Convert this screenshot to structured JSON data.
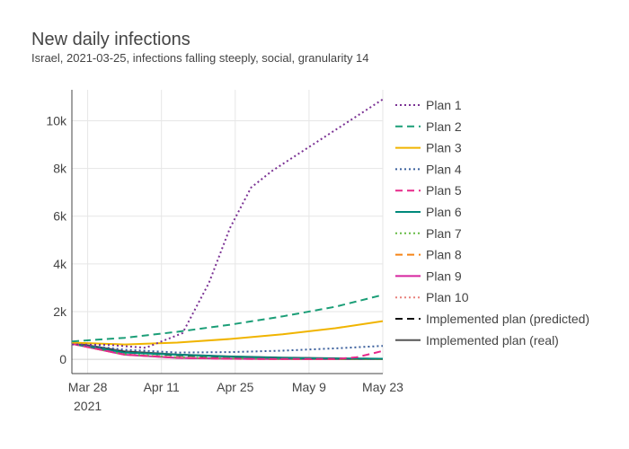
{
  "chart_data": {
    "type": "line",
    "title": "New daily infections",
    "subtitle": "Israel, 2021-03-25, infections falling steeply, social, granularity 14",
    "x_ticks": [
      {
        "date": "2021-03-28",
        "label": "Mar 28",
        "sublabel": "2021"
      },
      {
        "date": "2021-04-11",
        "label": "Apr 11",
        "sublabel": ""
      },
      {
        "date": "2021-04-25",
        "label": "Apr 25",
        "sublabel": ""
      },
      {
        "date": "2021-05-09",
        "label": "May 9",
        "sublabel": ""
      },
      {
        "date": "2021-05-23",
        "label": "May 23",
        "sublabel": ""
      }
    ],
    "x_range": [
      "2021-03-25",
      "2021-05-23"
    ],
    "y_ticks": [
      {
        "value": 0,
        "label": "0"
      },
      {
        "value": 2000,
        "label": "2k"
      },
      {
        "value": 4000,
        "label": "4k"
      },
      {
        "value": 6000,
        "label": "6k"
      },
      {
        "value": 8000,
        "label": "8k"
      },
      {
        "value": 10000,
        "label": "10k"
      }
    ],
    "ylim": [
      -600,
      11300
    ],
    "grid": true,
    "legend_position": "right",
    "series": [
      {
        "name": "Plan 1",
        "color": "#7b3294",
        "dash": "dot",
        "x": [
          "2021-03-25",
          "2021-04-01",
          "2021-04-08",
          "2021-04-15",
          "2021-04-20",
          "2021-04-24",
          "2021-04-28",
          "2021-05-02",
          "2021-05-09",
          "2021-05-16",
          "2021-05-23"
        ],
        "y": [
          620,
          600,
          480,
          1100,
          3200,
          5500,
          7200,
          7900,
          8900,
          9900,
          10900
        ]
      },
      {
        "name": "Plan 2",
        "color": "#1b9e77",
        "dash": "dash",
        "x": [
          "2021-03-25",
          "2021-04-04",
          "2021-04-14",
          "2021-04-24",
          "2021-05-04",
          "2021-05-14",
          "2021-05-23"
        ],
        "y": [
          750,
          900,
          1150,
          1450,
          1800,
          2200,
          2700
        ]
      },
      {
        "name": "Plan 3",
        "color": "#f0b400",
        "dash": "solid",
        "x": [
          "2021-03-25",
          "2021-04-04",
          "2021-04-14",
          "2021-04-24",
          "2021-05-04",
          "2021-05-14",
          "2021-05-23"
        ],
        "y": [
          700,
          620,
          700,
          850,
          1050,
          1300,
          1600
        ]
      },
      {
        "name": "Plan 4",
        "color": "#3a5f9c",
        "dash": "dot",
        "x": [
          "2021-03-25",
          "2021-04-04",
          "2021-04-14",
          "2021-04-24",
          "2021-05-04",
          "2021-05-14",
          "2021-05-23"
        ],
        "y": [
          650,
          400,
          280,
          300,
          360,
          460,
          560
        ]
      },
      {
        "name": "Plan 5",
        "color": "#e7298a",
        "dash": "dash",
        "x": [
          "2021-03-25",
          "2021-04-04",
          "2021-04-14",
          "2021-04-24",
          "2021-05-04",
          "2021-05-14",
          "2021-05-18",
          "2021-05-23"
        ],
        "y": [
          650,
          200,
          60,
          20,
          10,
          10,
          80,
          350
        ]
      },
      {
        "name": "Plan 6",
        "color": "#00897b",
        "dash": "solid",
        "x": [
          "2021-03-25",
          "2021-04-04",
          "2021-04-14",
          "2021-04-24",
          "2021-05-04",
          "2021-05-14",
          "2021-05-23"
        ],
        "y": [
          650,
          280,
          190,
          110,
          60,
          30,
          20
        ]
      },
      {
        "name": "Plan 7",
        "color": "#66bb44",
        "dash": "dot",
        "x": [
          "2021-03-25",
          "2021-04-04",
          "2021-04-14",
          "2021-04-24",
          "2021-05-04",
          "2021-05-14",
          "2021-05-23"
        ],
        "y": [
          650,
          210,
          80,
          30,
          10,
          5,
          5
        ]
      },
      {
        "name": "Plan 8",
        "color": "#f58518",
        "dash": "dash",
        "x": [
          "2021-03-25",
          "2021-04-04",
          "2021-04-14",
          "2021-04-24",
          "2021-05-04",
          "2021-05-14",
          "2021-05-23"
        ],
        "y": [
          650,
          200,
          70,
          25,
          10,
          5,
          5
        ]
      },
      {
        "name": "Plan 9",
        "color": "#d6249f",
        "dash": "solid",
        "x": [
          "2021-03-25",
          "2021-04-04",
          "2021-04-14",
          "2021-04-24",
          "2021-05-04",
          "2021-05-14",
          "2021-05-23"
        ],
        "y": [
          650,
          190,
          60,
          20,
          8,
          4,
          3
        ]
      },
      {
        "name": "Plan 10",
        "color": "#e8807c",
        "dash": "dot",
        "x": [
          "2021-03-25",
          "2021-04-04",
          "2021-04-14",
          "2021-04-24",
          "2021-05-04",
          "2021-05-14",
          "2021-05-23"
        ],
        "y": [
          650,
          200,
          70,
          25,
          10,
          5,
          4
        ]
      },
      {
        "name": "Implemented plan (predicted)",
        "color": "#111111",
        "dash": "dash",
        "x": [
          "2021-03-25",
          "2021-04-04",
          "2021-04-14",
          "2021-04-24",
          "2021-05-04",
          "2021-05-14",
          "2021-05-23"
        ],
        "y": [
          650,
          300,
          170,
          100,
          60,
          30,
          20
        ]
      },
      {
        "name": "Implemented plan (real)",
        "color": "#555555",
        "dash": "solid",
        "x": [
          "2021-03-25",
          "2021-04-04",
          "2021-04-14",
          "2021-04-24",
          "2021-05-04",
          "2021-05-14",
          "2021-05-23"
        ],
        "y": [
          700,
          330,
          200,
          120,
          70,
          40,
          20
        ]
      }
    ]
  }
}
